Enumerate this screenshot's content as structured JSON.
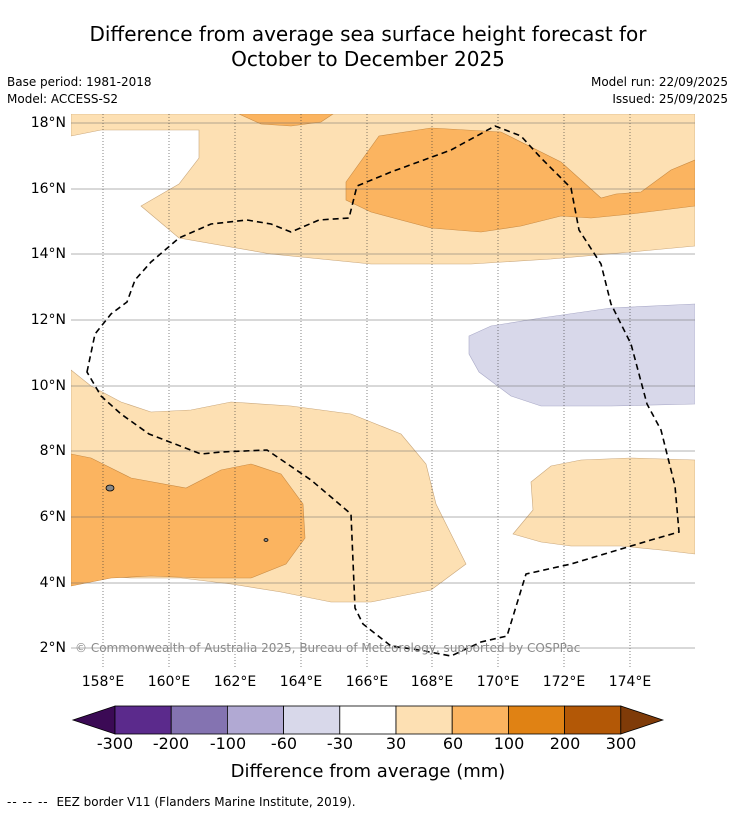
{
  "title_line1": "Difference from average sea surface height forecast for",
  "title_line2": "October to December 2025",
  "base_period": "Base period: 1981-2018",
  "model": "Model: ACCESS-S2",
  "model_run": "Model run: 22/09/2025",
  "issued": "Issued: 25/09/2025",
  "copyright": "© Commonwealth of Australia 2025, Bureau of Meteorology, supported by COSPPac",
  "lat_labels": [
    "18°N",
    "16°N",
    "14°N",
    "12°N",
    "10°N",
    "8°N",
    "6°N",
    "4°N",
    "2°N"
  ],
  "lon_labels": [
    "158°E",
    "160°E",
    "162°E",
    "164°E",
    "166°E",
    "168°E",
    "170°E",
    "172°E",
    "174°E"
  ],
  "colorbar": {
    "ticks": [
      "-300",
      "-200",
      "-100",
      "-60",
      "-30",
      "30",
      "60",
      "100",
      "200",
      "300"
    ],
    "colors": [
      "#3b0a55",
      "#5b2a8c",
      "#8473b1",
      "#b1a9d3",
      "#d8d8ea",
      "#ffffff",
      "#fde0b3",
      "#fbb460",
      "#e08214",
      "#b35806",
      "#7f3b08"
    ],
    "title": "Difference from average (mm)"
  },
  "legend": {
    "symbol": "-- -- --",
    "text": "EEZ border V11 (Flanders Marine Institute, 2019)."
  }
}
